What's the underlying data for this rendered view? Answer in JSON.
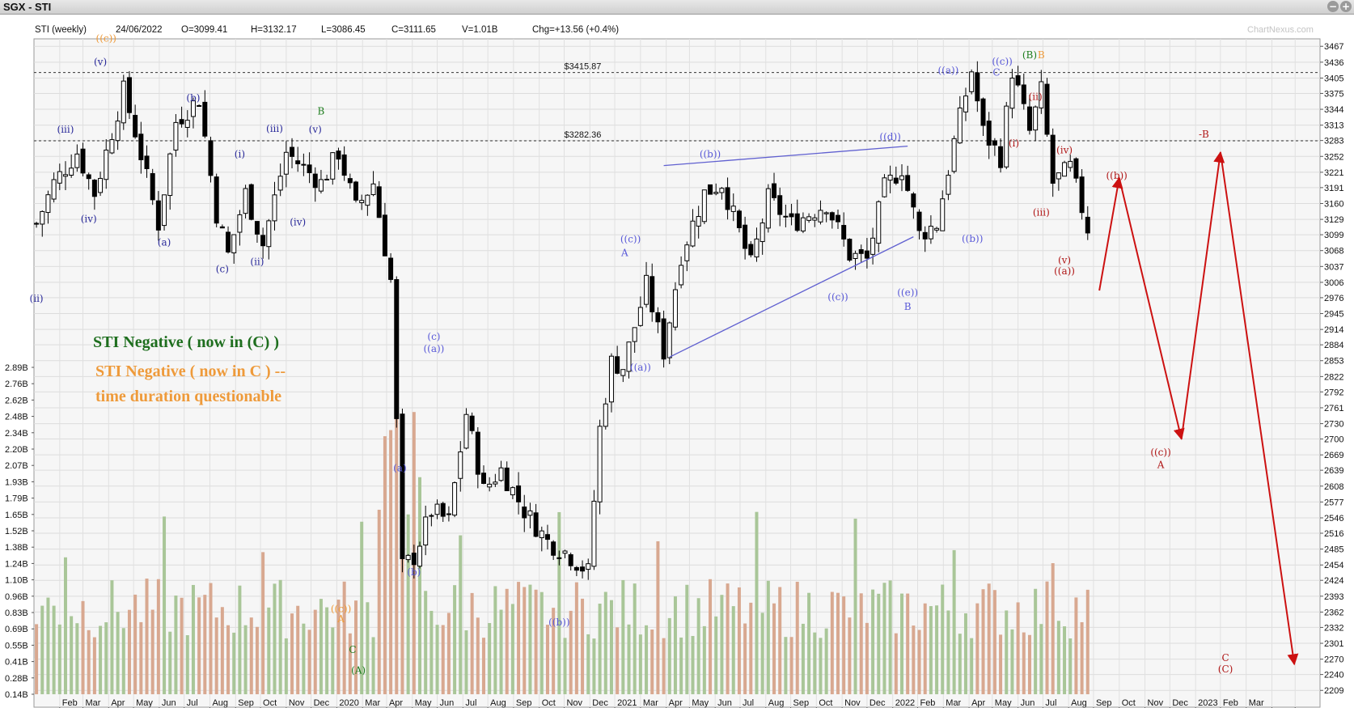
{
  "window": {
    "title": "SGX - STI",
    "buttons": [
      "−",
      "+"
    ]
  },
  "info_bar": {
    "name": "STI (weekly)",
    "date": "24/06/2022",
    "open": "O=3099.41",
    "high": "H=3132.17",
    "low": "L=3086.45",
    "close": "C=3111.65",
    "volume": "V=1.01B",
    "change": "Chg=+13.56 (+0.4%)",
    "watermark": "ChartNexus.com"
  },
  "notes": {
    "green": "STI Negative ( now in (C) )",
    "orange_line1": "STI Negative ( now in C ) --",
    "orange_line2": "time duration questionable"
  },
  "colors": {
    "up_volume": "#a9c698",
    "down_volume": "#d8a890",
    "candle": "#000000",
    "wave_blue": "#2a2a9a",
    "wave_light_blue": "#5a5ad8",
    "wave_green": "#1e7d1e",
    "wave_orange": "#ee9a3a",
    "wave_red": "#b01818",
    "projection": "#cc1111",
    "trendline": "#6060d0"
  },
  "chart_data": {
    "type": "candlestick",
    "title": "SGX - STI",
    "interval": "weekly",
    "ylim": [
      2192,
      3480
    ],
    "y_ticks": [
      3467,
      3436,
      3405,
      3375,
      3344,
      3313,
      3283,
      3252,
      3221,
      3191,
      3160,
      3129,
      3099,
      3068,
      3037,
      3006,
      2976,
      2945,
      2914,
      2884,
      2853,
      2822,
      2792,
      2761,
      2730,
      2700,
      2669,
      2639,
      2608,
      2577,
      2546,
      2516,
      2485,
      2454,
      2424,
      2393,
      2362,
      2332,
      2301,
      2270,
      2240,
      2209
    ],
    "volume_ticks": [
      "2.89B",
      "2.76B",
      "2.62B",
      "2.48B",
      "2.34B",
      "2.20B",
      "2.07B",
      "1.93B",
      "1.79B",
      "1.65B",
      "1.52B",
      "1.38B",
      "1.24B",
      "1.10B",
      "0.96B",
      "0.83B",
      "0.69B",
      "0.55B",
      "0.41B",
      "0.28B",
      "0.14B"
    ],
    "x_labels": [
      "Feb",
      "Mar",
      "Apr",
      "May",
      "Jun",
      "Jul",
      "Aug",
      "Sep",
      "Oct",
      "Nov",
      "Dec",
      "2020",
      "Mar",
      "Apr",
      "May",
      "Jun",
      "Jul",
      "Aug",
      "Sep",
      "Oct",
      "Nov",
      "Dec",
      "2021",
      "Mar",
      "Apr",
      "May",
      "Jun",
      "Jul",
      "Aug",
      "Sep",
      "Oct",
      "Nov",
      "Dec",
      "2022",
      "Feb",
      "Mar",
      "Apr",
      "May",
      "Jun",
      "Jul",
      "Aug",
      "Sep",
      "Oct",
      "Nov",
      "Dec",
      "2023",
      "Feb",
      "Mar"
    ],
    "reference_lines": [
      {
        "label": "$3415.87",
        "value": 3415.87
      },
      {
        "label": "$3282.36",
        "value": 3282.36
      }
    ],
    "close_path": [
      {
        "date": "2019-01-04",
        "close": 3120
      },
      {
        "date": "2019-01-25",
        "close": 3200
      },
      {
        "date": "2019-02-22",
        "close": 3260
      },
      {
        "date": "2019-03-15",
        "close": 3180
      },
      {
        "date": "2019-04-19",
        "close": 3380
      },
      {
        "date": "2019-05-03",
        "close": 3300
      },
      {
        "date": "2019-05-31",
        "close": 3120
      },
      {
        "date": "2019-06-21",
        "close": 3320
      },
      {
        "date": "2019-07-19",
        "close": 3365
      },
      {
        "date": "2019-08-09",
        "close": 3140
      },
      {
        "date": "2019-08-23",
        "close": 3060
      },
      {
        "date": "2019-09-13",
        "close": 3180
      },
      {
        "date": "2019-10-04",
        "close": 3080
      },
      {
        "date": "2019-11-01",
        "close": 3260
      },
      {
        "date": "2019-11-22",
        "close": 3230
      },
      {
        "date": "2019-12-13",
        "close": 3200
      },
      {
        "date": "2020-01-03",
        "close": 3260
      },
      {
        "date": "2020-01-24",
        "close": 3150
      },
      {
        "date": "2020-02-14",
        "close": 3200
      },
      {
        "date": "2020-03-06",
        "close": 3010
      },
      {
        "date": "2020-03-20",
        "close": 2450
      },
      {
        "date": "2020-04-03",
        "close": 2470
      },
      {
        "date": "2020-04-24",
        "close": 2560
      },
      {
        "date": "2020-05-15",
        "close": 2540
      },
      {
        "date": "2020-06-05",
        "close": 2750
      },
      {
        "date": "2020-06-26",
        "close": 2600
      },
      {
        "date": "2020-07-17",
        "close": 2640
      },
      {
        "date": "2020-08-14",
        "close": 2560
      },
      {
        "date": "2020-09-11",
        "close": 2500
      },
      {
        "date": "2020-10-02",
        "close": 2480
      },
      {
        "date": "2020-10-30",
        "close": 2440
      },
      {
        "date": "2020-11-13",
        "close": 2720
      },
      {
        "date": "2020-11-27",
        "close": 2850
      },
      {
        "date": "2020-12-11",
        "close": 2840
      },
      {
        "date": "2021-01-08",
        "close": 3000
      },
      {
        "date": "2021-01-29",
        "close": 2870
      },
      {
        "date": "2021-02-19",
        "close": 3060
      },
      {
        "date": "2021-03-19",
        "close": 3180
      },
      {
        "date": "2021-04-09",
        "close": 3200
      },
      {
        "date": "2021-05-14",
        "close": 3040
      },
      {
        "date": "2021-06-04",
        "close": 3170
      },
      {
        "date": "2021-07-02",
        "close": 3120
      },
      {
        "date": "2021-08-13",
        "close": 3160
      },
      {
        "date": "2021-09-10",
        "close": 3060
      },
      {
        "date": "2021-10-01",
        "close": 3050
      },
      {
        "date": "2021-10-22",
        "close": 3190
      },
      {
        "date": "2021-11-12",
        "close": 3230
      },
      {
        "date": "2021-12-03",
        "close": 3100
      },
      {
        "date": "2021-12-24",
        "close": 3120
      },
      {
        "date": "2022-01-14",
        "close": 3280
      },
      {
        "date": "2022-02-04",
        "close": 3420
      },
      {
        "date": "2022-02-18",
        "close": 3300
      },
      {
        "date": "2022-03-11",
        "close": 3250
      },
      {
        "date": "2022-03-25",
        "close": 3420
      },
      {
        "date": "2022-04-15",
        "close": 3300
      },
      {
        "date": "2022-04-29",
        "close": 3380
      },
      {
        "date": "2022-05-13",
        "close": 3200
      },
      {
        "date": "2022-06-03",
        "close": 3230
      },
      {
        "date": "2022-06-24",
        "close": 3111.65
      }
    ],
    "projection": [
      {
        "date": "2022-07-08",
        "price": 2990
      },
      {
        "date": "2022-08-01",
        "price": 3210
      },
      {
        "date": "2022-10-15",
        "price": 2700
      },
      {
        "date": "2022-12-01",
        "price": 3260
      },
      {
        "date": "2023-02-28",
        "price": 2260
      }
    ],
    "trendlines": [
      {
        "from": {
          "date": "2021-01-29",
          "price": 3234
        },
        "to": {
          "date": "2021-11-19",
          "price": 3272
        }
      },
      {
        "from": {
          "date": "2021-02-05",
          "price": 2860
        },
        "to": {
          "date": "2021-11-26",
          "price": 3095
        }
      }
    ]
  },
  "wave_labels": [
    {
      "text": "((c))",
      "date": "2019-03-29",
      "price": 3476,
      "color": "orange"
    },
    {
      "text": "(v)",
      "date": "2019-03-22",
      "price": 3430,
      "color": "blue"
    },
    {
      "text": "(iii)",
      "date": "2019-02-08",
      "price": 3298,
      "color": "blue"
    },
    {
      "text": "(iv)",
      "date": "2019-03-08",
      "price": 3124,
      "color": "blue"
    },
    {
      "text": "(ii)",
      "date": "2019-01-04",
      "price": 2968,
      "color": "blue"
    },
    {
      "text": "(b)",
      "date": "2019-07-12",
      "price": 3360,
      "color": "blue"
    },
    {
      "text": "(a)",
      "date": "2019-06-07",
      "price": 3078,
      "color": "blue"
    },
    {
      "text": "(i)",
      "date": "2019-09-06",
      "price": 3250,
      "color": "blue"
    },
    {
      "text": "(c)",
      "date": "2019-08-16",
      "price": 3026,
      "color": "blue"
    },
    {
      "text": "(ii)",
      "date": "2019-09-27",
      "price": 3040,
      "color": "blue"
    },
    {
      "text": "(iii)",
      "date": "2019-10-18",
      "price": 3300,
      "color": "blue"
    },
    {
      "text": "(iv)",
      "date": "2019-11-15",
      "price": 3117,
      "color": "blue"
    },
    {
      "text": "(v)",
      "date": "2019-12-06",
      "price": 3298,
      "color": "blue"
    },
    {
      "text": "B",
      "date": "2019-12-13",
      "price": 3334,
      "color": "green"
    },
    {
      "text": "A",
      "date": "2020-12-13",
      "price": 3057,
      "color": "light_blue"
    },
    {
      "text": "((c))",
      "date": "2020-12-20",
      "price": 3084,
      "color": "light_blue"
    },
    {
      "text": "(c)",
      "date": "2020-04-27",
      "price": 2894,
      "color": "light_blue"
    },
    {
      "text": "((a))",
      "date": "2020-04-27",
      "price": 2870,
      "color": "light_blue"
    },
    {
      "text": "(a)",
      "date": "2020-03-17",
      "price": 2637,
      "color": "light_blue"
    },
    {
      "text": "(b)",
      "date": "2020-04-03",
      "price": 2434,
      "color": "light_blue"
    },
    {
      "text": "((b))",
      "date": "2020-09-25",
      "price": 2336,
      "color": "light_blue"
    },
    {
      "text": "((a))",
      "date": "2021-01-01",
      "price": 2834,
      "color": "light_blue"
    },
    {
      "text": "((b))",
      "date": "2021-03-26",
      "price": 3250,
      "color": "light_blue"
    },
    {
      "text": "((c))",
      "date": "2021-08-27",
      "price": 2971,
      "color": "light_blue"
    },
    {
      "text": "((d))",
      "date": "2021-10-29",
      "price": 3284,
      "color": "light_blue"
    },
    {
      "text": "((e))",
      "date": "2021-11-19",
      "price": 2980,
      "color": "light_blue"
    },
    {
      "text": "B",
      "date": "2021-11-19",
      "price": 2952,
      "color": "light_blue"
    },
    {
      "text": "((a))",
      "date": "2022-01-07",
      "price": 3414,
      "color": "light_blue"
    },
    {
      "text": "((b))",
      "date": "2022-02-05",
      "price": 3085,
      "color": "light_blue"
    },
    {
      "text": "((c))",
      "date": "2022-03-13",
      "price": 3431,
      "color": "light_blue"
    },
    {
      "text": "C",
      "date": "2022-03-06",
      "price": 3410,
      "color": "light_blue"
    },
    {
      "text": "(B)",
      "date": "2022-04-15",
      "price": 3444,
      "color": "green"
    },
    {
      "text": "B",
      "date": "2022-04-29",
      "price": 3444,
      "color": "orange"
    },
    {
      "text": "(ii)",
      "date": "2022-04-22",
      "price": 3362,
      "color": "red"
    },
    {
      "text": "(i)",
      "date": "2022-03-27",
      "price": 3271,
      "color": "red"
    },
    {
      "text": "(iv)",
      "date": "2022-05-27",
      "price": 3258,
      "color": "red"
    },
    {
      "text": "(iii)",
      "date": "2022-04-29",
      "price": 3136,
      "color": "red"
    },
    {
      "text": "(v)",
      "date": "2022-05-27",
      "price": 3043,
      "color": "red"
    },
    {
      "text": "((a))",
      "date": "2022-05-27",
      "price": 3022,
      "color": "red"
    },
    {
      "text": "((b))",
      "date": "2022-07-29",
      "price": 3208,
      "color": "red"
    },
    {
      "text": "-B",
      "date": "2022-11-11",
      "price": 3289,
      "color": "red"
    },
    {
      "text": "((c))",
      "date": "2022-09-20",
      "price": 2668,
      "color": "red"
    },
    {
      "text": "A",
      "date": "2022-09-20",
      "price": 2643,
      "color": "red"
    },
    {
      "text": "((c))",
      "date": "2020-01-06",
      "price": 2362,
      "color": "orange"
    },
    {
      "text": "A",
      "date": "2020-01-06",
      "price": 2342,
      "color": "orange"
    },
    {
      "text": "C",
      "date": "2020-01-20",
      "price": 2282,
      "color": "green"
    },
    {
      "text": "(A)",
      "date": "2020-01-27",
      "price": 2242,
      "color": "green"
    },
    {
      "text": "C",
      "date": "2022-12-07",
      "price": 2266,
      "color": "red"
    },
    {
      "text": "(C)",
      "date": "2022-12-07",
      "price": 2244,
      "color": "red"
    }
  ]
}
